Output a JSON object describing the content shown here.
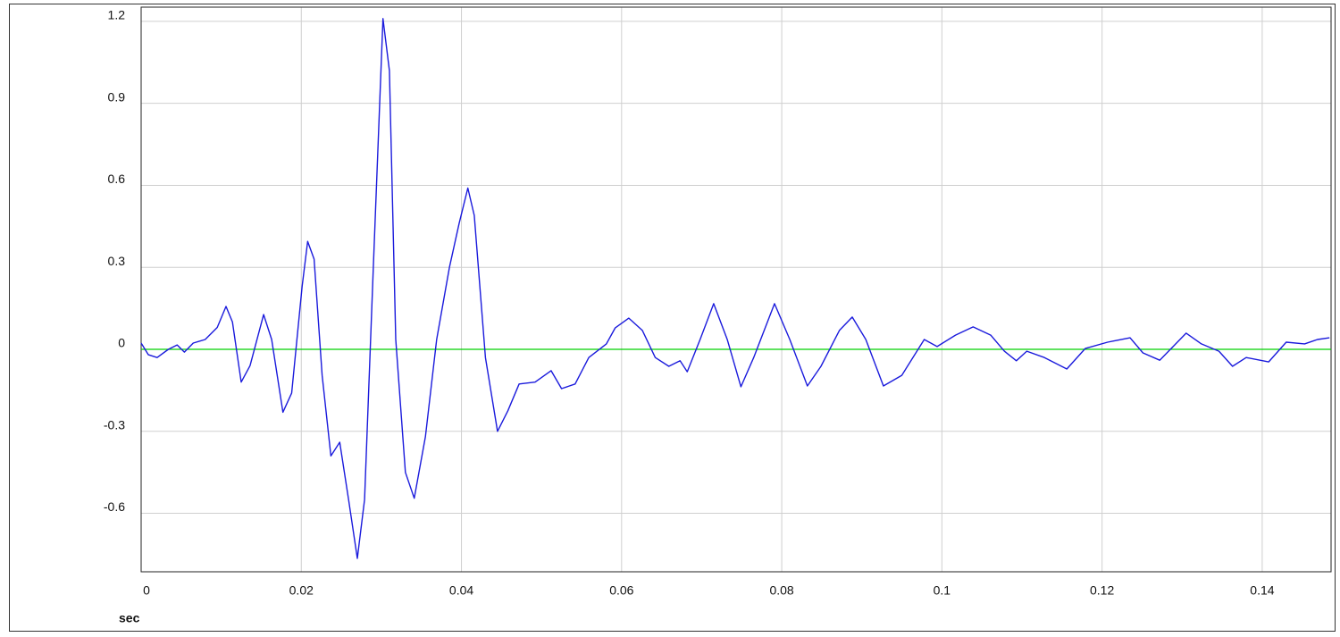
{
  "chart_data": {
    "type": "line",
    "x_label": "sec",
    "x": [
      0,
      0.0009,
      0.002,
      0.0034,
      0.0045,
      0.0054,
      0.0065,
      0.008,
      0.0095,
      0.0106,
      0.0114,
      0.0125,
      0.0136,
      0.0153,
      0.0163,
      0.0177,
      0.0188,
      0.0201,
      0.0208,
      0.0216,
      0.0226,
      0.0237,
      0.0248,
      0.0259,
      0.027,
      0.0279,
      0.029,
      0.0302,
      0.031,
      0.0318,
      0.033,
      0.0341,
      0.0355,
      0.0369,
      0.0385,
      0.0397,
      0.0408,
      0.0416,
      0.043,
      0.0445,
      0.0458,
      0.0472,
      0.0492,
      0.0512,
      0.0525,
      0.0542,
      0.0559,
      0.0581,
      0.0592,
      0.0609,
      0.0626,
      0.0642,
      0.0659,
      0.0673,
      0.0682,
      0.0698,
      0.0715,
      0.0732,
      0.0749,
      0.0765,
      0.0791,
      0.081,
      0.0832,
      0.0849,
      0.0872,
      0.0888,
      0.0905,
      0.0927,
      0.095,
      0.0978,
      0.0994,
      0.1017,
      0.1039,
      0.1061,
      0.1078,
      0.1093,
      0.1106,
      0.1128,
      0.1156,
      0.1179,
      0.1207,
      0.1235,
      0.1251,
      0.1272,
      0.1305,
      0.1324,
      0.1346,
      0.1363,
      0.138,
      0.1408,
      0.143,
      0.1453,
      0.1469,
      0.1484
    ],
    "series": [
      {
        "color": "#1a1adc",
        "values": [
          0.023,
          -0.02,
          -0.03,
          0,
          0.016,
          -0.01,
          0.023,
          0.036,
          0.08,
          0.157,
          0.1,
          -0.12,
          -0.06,
          0.127,
          0.036,
          -0.23,
          -0.16,
          0.23,
          0.395,
          0.33,
          -0.095,
          -0.39,
          -0.34,
          -0.55,
          -0.765,
          -0.55,
          0.3,
          1.21,
          1.02,
          0.036,
          -0.45,
          -0.545,
          -0.32,
          0.036,
          0.3,
          0.46,
          0.59,
          0.49,
          -0.03,
          -0.3,
          -0.225,
          -0.127,
          -0.12,
          -0.078,
          -0.144,
          -0.127,
          -0.03,
          0.02,
          0.078,
          0.114,
          0.069,
          -0.03,
          -0.062,
          -0.042,
          -0.082,
          0.036,
          0.167,
          0.036,
          -0.137,
          -0.03,
          0.167,
          0.036,
          -0.134,
          -0.062,
          0.069,
          0.118,
          0.036,
          -0.134,
          -0.095,
          0.036,
          0.01,
          0.052,
          0.082,
          0.052,
          -0.007,
          -0.042,
          -0.007,
          -0.03,
          -0.072,
          0.003,
          0.026,
          0.042,
          -0.013,
          -0.04,
          0.059,
          0.02,
          -0.007,
          -0.062,
          -0.03,
          -0.046,
          0.026,
          0.02,
          0.036,
          0.042
        ]
      }
    ],
    "zero_line": {
      "value": 0,
      "color": "#00d000"
    },
    "xlim": [
      0,
      0.1486
    ],
    "ylim": [
      -0.814,
      1.252
    ],
    "xticks": [
      0,
      0.02,
      0.04,
      0.06,
      0.08,
      0.1,
      0.12,
      0.14
    ],
    "yticks": [
      -0.6,
      -0.3,
      0,
      0.3,
      0.6,
      0.9,
      1.2
    ],
    "grid": true
  }
}
